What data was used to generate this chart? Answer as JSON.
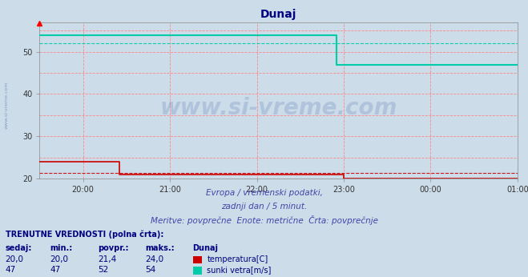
{
  "title": "Dunaj",
  "bg_color": "#ccdce8",
  "plot_bg_color": "#ccdce8",
  "fig_bg_color": "#ccdce8",
  "title_color": "#000080",
  "title_fontsize": 10,
  "xlabel_text1": "Evropa / vremenski podatki,",
  "xlabel_text2": "zadnji dan / 5 minut.",
  "xlabel_text3": "Meritve: povprečne  Enote: metrične  Črta: povprečnje",
  "grid_color": "#ff8888",
  "ylim": [
    20,
    57
  ],
  "xlim_start": 0,
  "xlim_end": 330,
  "x_ticks_labels": [
    "20:00",
    "21:00",
    "22:00",
    "23:00",
    "00:00",
    "01:00"
  ],
  "x_ticks_pos": [
    30,
    90,
    150,
    210,
    270,
    330
  ],
  "temp_color": "#cc0000",
  "wind_color": "#00ccaa",
  "temp_avg": 21.4,
  "wind_avg": 52,
  "temp_data_x": [
    0,
    30,
    55,
    55,
    210,
    210,
    330
  ],
  "temp_data_y": [
    24,
    24,
    24,
    21,
    21,
    20,
    20
  ],
  "wind_data_x": [
    0,
    5,
    5,
    205,
    205,
    330
  ],
  "wind_data_y": [
    54,
    54,
    54,
    54,
    47,
    47
  ],
  "bottom_text_color": "#4444aa",
  "table_header_color": "#000080",
  "table_val_color": "#000080",
  "legend_temp_color": "#cc0000",
  "legend_wind_color": "#00ccaa",
  "watermark_color": "#3355aa",
  "watermark_alpha": 0.18,
  "yticks": [
    20,
    30,
    40,
    50
  ],
  "grid_y_lines": [
    20,
    25,
    30,
    35,
    40,
    45,
    50,
    55
  ]
}
